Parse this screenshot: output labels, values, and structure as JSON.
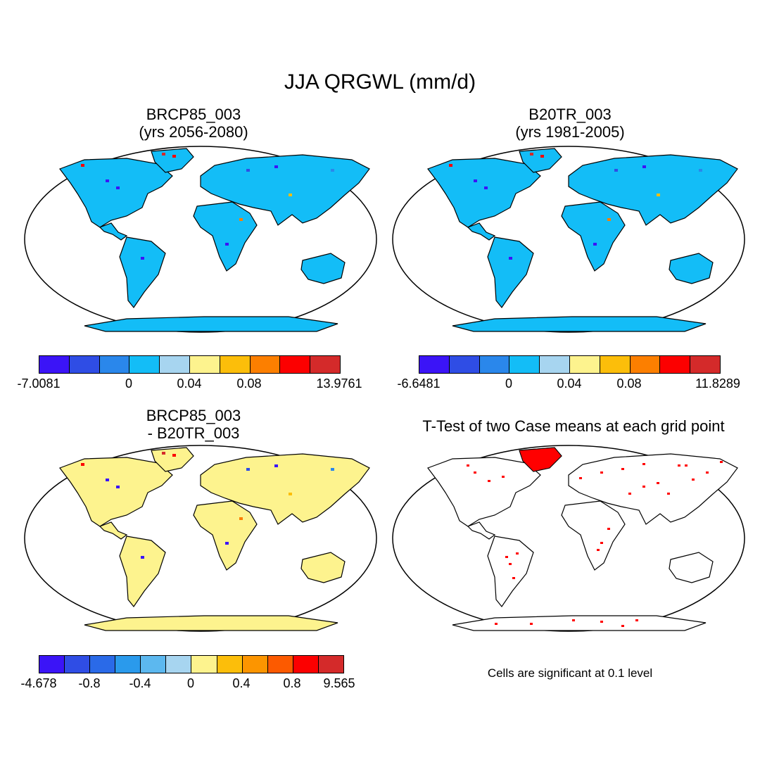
{
  "figure": {
    "title": "JJA QRGWL (mm/d)"
  },
  "panels": [
    {
      "id": "p1",
      "title_line1": "BRCP85_003",
      "title_line2": "(yrs 2056-2080)",
      "land_color": "#13bdf7",
      "colorbar": {
        "colors": [
          "#3b14f7",
          "#2f4de5",
          "#2a87eb",
          "#13bdf7",
          "#a7d5f0",
          "#fdf38e",
          "#fcbe0a",
          "#fc7f00",
          "#fc0000",
          "#d42a2a"
        ],
        "labels": [
          "-7.0081",
          "0",
          "0.04",
          "0.08",
          "13.9761"
        ]
      }
    },
    {
      "id": "p2",
      "title_line1": "B20TR_003",
      "title_line2": "(yrs 1981-2005)",
      "land_color": "#13bdf7",
      "colorbar": {
        "colors": [
          "#3b14f7",
          "#2f4de5",
          "#2a87eb",
          "#13bdf7",
          "#a7d5f0",
          "#fdf38e",
          "#fcbe0a",
          "#fc7f00",
          "#fc0000",
          "#d42a2a"
        ],
        "labels": [
          "-6.6481",
          "0",
          "0.04",
          "0.08",
          "11.8289"
        ]
      }
    },
    {
      "id": "p3",
      "title_line1": "BRCP85_003",
      "title_line2": "- B20TR_003",
      "land_color": "#fdf38e",
      "colorbar": {
        "colors": [
          "#3b14f7",
          "#2f4de5",
          "#2a6ae8",
          "#2a9aec",
          "#5cb8ef",
          "#a7d5f0",
          "#fdf38e",
          "#fcbe0a",
          "#fc9500",
          "#fc5a00",
          "#fc0000",
          "#d42a2a"
        ],
        "labels": [
          "-4.678",
          "-0.8",
          "-0.4",
          "0",
          "0.4",
          "0.8",
          "9.565"
        ]
      }
    },
    {
      "id": "p4",
      "title_line1": "T-Test of two Case means at each grid point",
      "land_color": "#ffffff",
      "significant_color": "#ff0000",
      "note": "Cells are significant at 0.1 level"
    }
  ]
}
